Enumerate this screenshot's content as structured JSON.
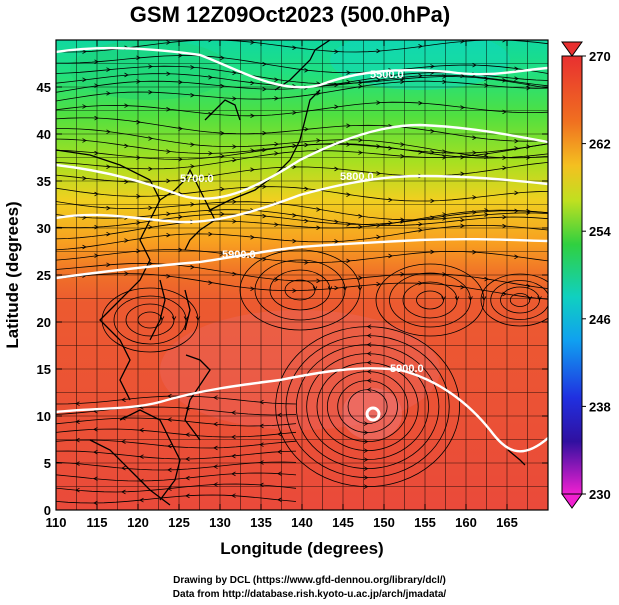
{
  "title": "GSM 12Z09Oct2023 (500.0hPa)",
  "xlabel": "Longitude (degrees)",
  "ylabel": "Latitude  (degrees)",
  "x_ticks": [
    "110",
    "115",
    "120",
    "125",
    "130",
    "135",
    "140",
    "145",
    "150",
    "155",
    "160",
    "165"
  ],
  "y_ticks": [
    "0",
    "5",
    "10",
    "15",
    "20",
    "25",
    "30",
    "35",
    "40",
    "45"
  ],
  "colorbar": {
    "ticks": [
      "270",
      "262",
      "254",
      "246",
      "238",
      "230"
    ],
    "min": 230,
    "max": 270
  },
  "contours": [
    {
      "label": "5500.0"
    },
    {
      "label": "5700.0"
    },
    {
      "label": "5800.0"
    },
    {
      "label": "5900.0"
    },
    {
      "label": "5900.0"
    }
  ],
  "credits": {
    "line1": "Drawing by DCL (https://www.gfd-dennou.org/library/dcl/)",
    "line2": "Data from http://database.rish.kyoto-u.ac.jp/arch/jmadata/"
  },
  "chart_data": {
    "type": "heatmap",
    "title": "GSM 12Z09Oct2023 (500.0hPa)",
    "xlabel": "Longitude (degrees)",
    "ylabel": "Latitude  (degrees)",
    "xlim": [
      110,
      170
    ],
    "ylim": [
      0,
      50
    ],
    "colorbar_range": [
      230,
      270
    ],
    "overlays": [
      "geopotential height contours",
      "wind streamlines",
      "coastlines"
    ],
    "cyclone_center": {
      "lon": 148,
      "lat": 11
    }
  }
}
